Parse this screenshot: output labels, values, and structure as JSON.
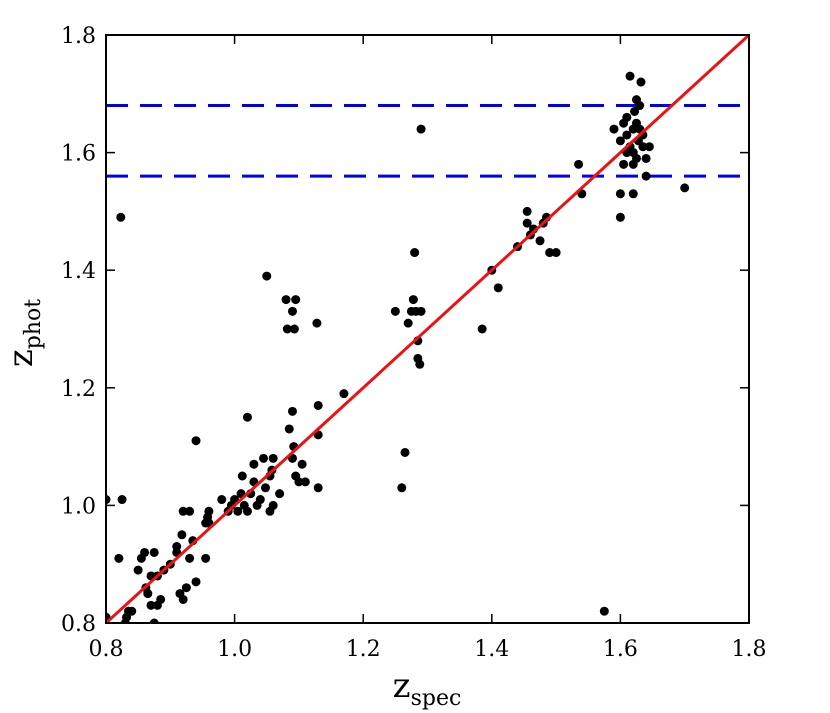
{
  "chart_data": {
    "type": "scatter",
    "title": "",
    "xlabel": "z",
    "xlabel_sub": "spec",
    "ylabel": "z",
    "ylabel_sub": "phot",
    "xlim": [
      0.8,
      1.8
    ],
    "ylim": [
      0.8,
      1.8
    ],
    "xticks": [
      0.8,
      1.0,
      1.2,
      1.4,
      1.6,
      1.8
    ],
    "yticks": [
      0.8,
      1.0,
      1.2,
      1.4,
      1.6,
      1.8
    ],
    "xtick_labels": [
      "0.8",
      "1.0",
      "1.2",
      "1.4",
      "1.6",
      "1.8"
    ],
    "ytick_labels": [
      "0.8",
      "1.0",
      "1.2",
      "1.4",
      "1.6",
      "1.8"
    ],
    "grid": false,
    "legend": "none",
    "colors": {
      "points": "#000000",
      "fit_line": "#ee1111",
      "reference_lines": "#0000ee"
    },
    "reference_lines": [
      {
        "orientation": "horizontal",
        "y": 1.68,
        "style": "dashed"
      },
      {
        "orientation": "horizontal",
        "y": 1.56,
        "style": "dashed"
      }
    ],
    "fit_line": {
      "style": "solid",
      "points": [
        [
          0.8,
          0.8
        ],
        [
          1.8,
          1.8
        ]
      ]
    },
    "points": [
      [
        0.8,
        0.81
      ],
      [
        0.8,
        1.01
      ],
      [
        0.82,
        0.91
      ],
      [
        0.823,
        1.49
      ],
      [
        0.825,
        1.01
      ],
      [
        0.83,
        0.8
      ],
      [
        0.832,
        0.81
      ],
      [
        0.835,
        0.82
      ],
      [
        0.84,
        0.82
      ],
      [
        0.85,
        0.89
      ],
      [
        0.855,
        0.91
      ],
      [
        0.86,
        0.92
      ],
      [
        0.862,
        0.86
      ],
      [
        0.865,
        0.85
      ],
      [
        0.87,
        0.83
      ],
      [
        0.87,
        0.88
      ],
      [
        0.875,
        0.92
      ],
      [
        0.875,
        0.8
      ],
      [
        0.88,
        0.83
      ],
      [
        0.88,
        0.88
      ],
      [
        0.885,
        0.84
      ],
      [
        0.89,
        0.89
      ],
      [
        0.9,
        0.9
      ],
      [
        0.91,
        0.92
      ],
      [
        0.91,
        0.93
      ],
      [
        0.915,
        0.85
      ],
      [
        0.918,
        0.95
      ],
      [
        0.92,
        0.99
      ],
      [
        0.92,
        0.84
      ],
      [
        0.925,
        0.86
      ],
      [
        0.93,
        0.99
      ],
      [
        0.93,
        0.91
      ],
      [
        0.935,
        0.94
      ],
      [
        0.94,
        1.11
      ],
      [
        0.94,
        0.87
      ],
      [
        0.955,
        0.91
      ],
      [
        0.955,
        0.97
      ],
      [
        0.958,
        0.98
      ],
      [
        0.96,
        0.99
      ],
      [
        0.96,
        0.97
      ],
      [
        0.98,
        1.01
      ],
      [
        0.99,
        0.99
      ],
      [
        0.995,
        1.0
      ],
      [
        1.0,
        1.01
      ],
      [
        1.005,
        0.99
      ],
      [
        1.01,
        1.02
      ],
      [
        1.012,
        1.05
      ],
      [
        1.015,
        1.0
      ],
      [
        1.02,
        1.15
      ],
      [
        1.02,
        0.99
      ],
      [
        1.025,
        1.02
      ],
      [
        1.03,
        1.04
      ],
      [
        1.03,
        1.07
      ],
      [
        1.035,
        1.0
      ],
      [
        1.04,
        1.01
      ],
      [
        1.045,
        1.08
      ],
      [
        1.048,
        1.03
      ],
      [
        1.05,
        1.39
      ],
      [
        1.055,
        0.99
      ],
      [
        1.055,
        1.05
      ],
      [
        1.058,
        1.06
      ],
      [
        1.06,
        1.08
      ],
      [
        1.06,
        1.0
      ],
      [
        1.07,
        1.02
      ],
      [
        1.08,
        1.35
      ],
      [
        1.082,
        1.3
      ],
      [
        1.085,
        1.13
      ],
      [
        1.09,
        1.33
      ],
      [
        1.09,
        1.16
      ],
      [
        1.09,
        1.08
      ],
      [
        1.092,
        1.1
      ],
      [
        1.093,
        1.3
      ],
      [
        1.095,
        1.35
      ],
      [
        1.095,
        1.05
      ],
      [
        1.1,
        1.04
      ],
      [
        1.105,
        1.07
      ],
      [
        1.11,
        1.04
      ],
      [
        1.128,
        1.31
      ],
      [
        1.13,
        1.17
      ],
      [
        1.13,
        1.12
      ],
      [
        1.13,
        1.03
      ],
      [
        1.17,
        1.19
      ],
      [
        1.25,
        1.33
      ],
      [
        1.26,
        1.03
      ],
      [
        1.265,
        1.09
      ],
      [
        1.27,
        1.31
      ],
      [
        1.275,
        1.33
      ],
      [
        1.278,
        1.35
      ],
      [
        1.28,
        1.43
      ],
      [
        1.282,
        1.33
      ],
      [
        1.285,
        1.28
      ],
      [
        1.285,
        1.25
      ],
      [
        1.288,
        1.24
      ],
      [
        1.29,
        1.33
      ],
      [
        1.29,
        1.64
      ],
      [
        1.385,
        1.3
      ],
      [
        1.4,
        1.4
      ],
      [
        1.41,
        1.37
      ],
      [
        1.44,
        1.44
      ],
      [
        1.455,
        1.48
      ],
      [
        1.455,
        1.5
      ],
      [
        1.46,
        1.46
      ],
      [
        1.465,
        1.47
      ],
      [
        1.475,
        1.45
      ],
      [
        1.48,
        1.48
      ],
      [
        1.485,
        1.49
      ],
      [
        1.49,
        1.43
      ],
      [
        1.5,
        1.43
      ],
      [
        1.535,
        1.58
      ],
      [
        1.54,
        1.53
      ],
      [
        1.575,
        0.82
      ],
      [
        1.59,
        1.64
      ],
      [
        1.6,
        1.62
      ],
      [
        1.6,
        1.53
      ],
      [
        1.6,
        1.49
      ],
      [
        1.605,
        1.58
      ],
      [
        1.605,
        1.65
      ],
      [
        1.61,
        1.63
      ],
      [
        1.61,
        1.6
      ],
      [
        1.61,
        1.66
      ],
      [
        1.615,
        1.73
      ],
      [
        1.615,
        1.61
      ],
      [
        1.62,
        1.64
      ],
      [
        1.62,
        1.53
      ],
      [
        1.62,
        1.6
      ],
      [
        1.62,
        1.58
      ],
      [
        1.622,
        1.67
      ],
      [
        1.625,
        1.65
      ],
      [
        1.625,
        1.59
      ],
      [
        1.625,
        1.69
      ],
      [
        1.628,
        1.62
      ],
      [
        1.63,
        1.64
      ],
      [
        1.63,
        1.68
      ],
      [
        1.632,
        1.72
      ],
      [
        1.635,
        1.63
      ],
      [
        1.635,
        1.61
      ],
      [
        1.64,
        1.59
      ],
      [
        1.64,
        1.56
      ],
      [
        1.645,
        1.61
      ],
      [
        1.7,
        1.54
      ]
    ]
  }
}
